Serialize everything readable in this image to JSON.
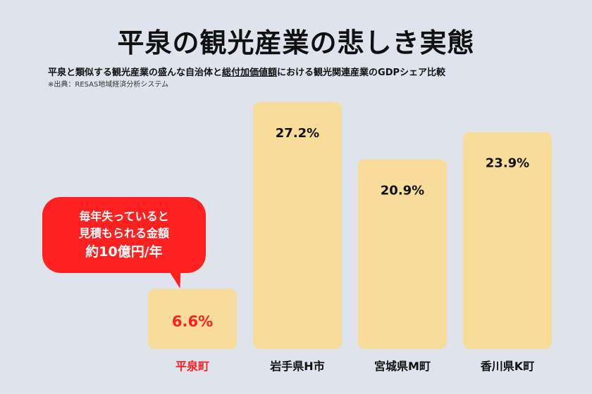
{
  "title": "平泉の観光産業の悲しき実態",
  "subtitle_pre": "平泉と類似する観光産業の盛んな自治体と",
  "subtitle_ul": "総付加価値額",
  "subtitle_post": "における観光関連産業のGDPシェア比較",
  "source": "※出典：RESAS地域経済分析システム",
  "bubble": {
    "line1": "毎年失っていると",
    "line2": "見積もられる金額",
    "line3": "約10億円/年"
  },
  "colors": {
    "background": "#dfe4ec",
    "bar": "#f7dd99",
    "highlight": "#ff2020",
    "text": "#111111"
  },
  "chart_data": {
    "type": "bar",
    "categories": [
      "平泉町",
      "岩手県H市",
      "宮城県M町",
      "香川県K町"
    ],
    "values": [
      6.6,
      27.2,
      20.9,
      23.9
    ],
    "value_labels": [
      "6.6%",
      "27.2%",
      "20.9%",
      "23.9%"
    ],
    "highlight_index": 0,
    "ylim": [
      0,
      27.2
    ],
    "grid": false,
    "legend": "none"
  }
}
